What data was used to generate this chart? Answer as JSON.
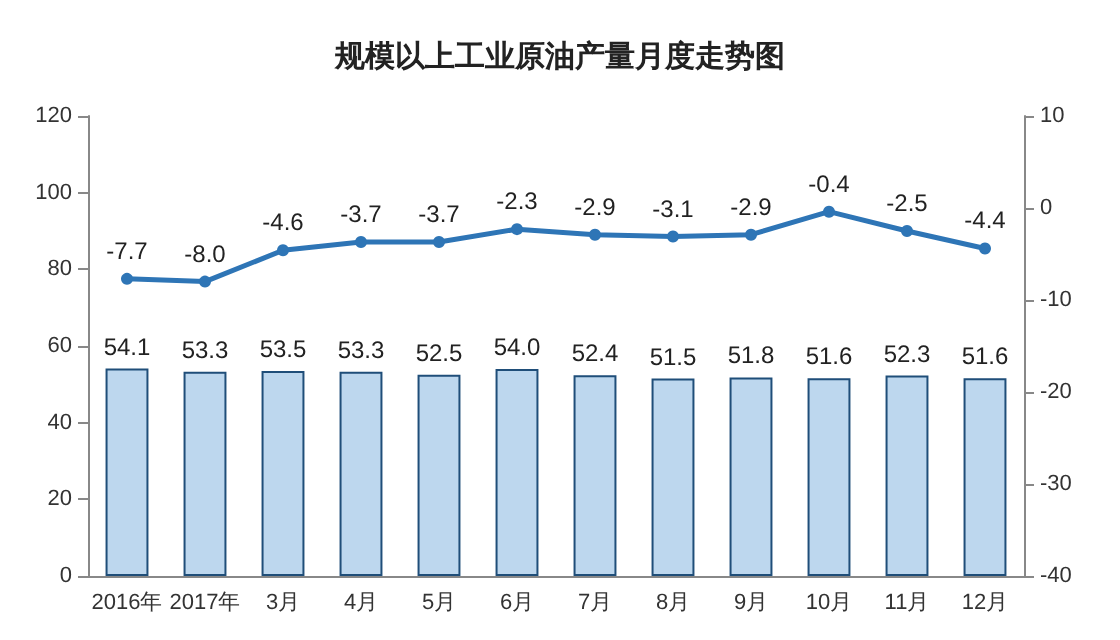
{
  "chart_data": {
    "type": "bar",
    "title": "规模以上工业原油产量月度走势图",
    "categories": [
      "2016年",
      "2017年",
      "3月",
      "4月",
      "5月",
      "6月",
      "7月",
      "8月",
      "9月",
      "10月",
      "11月",
      "12月"
    ],
    "series": [
      {
        "color": "#bdd7ee",
        "values": [
          54.1,
          53.3,
          53.5,
          53.3,
          52.5,
          54.0,
          52.4,
          51.5,
          51.8,
          51.6,
          52.3,
          51.6
        ],
        "value_labels": [
          "54.1",
          "53.3",
          "53.5",
          "53.3",
          "52.5",
          "54.0",
          "52.4",
          "51.5",
          "51.8",
          "51.6",
          "52.3",
          "51.6"
        ]
      },
      {
        "type": "line",
        "axis": "y2",
        "color": "#2e75b6",
        "marker": "circle",
        "values": [
          -7.7,
          -8.0,
          -4.6,
          -3.7,
          -3.7,
          -2.3,
          -2.9,
          -3.1,
          -2.9,
          -0.4,
          -2.5,
          -4.4
        ],
        "value_labels": [
          "-7.7",
          "-8.0",
          "-4.6",
          "-3.7",
          "-3.7",
          "-2.3",
          "-2.9",
          "-3.1",
          "-2.9",
          "-0.4",
          "-2.5",
          "-4.4"
        ]
      }
    ],
    "ylim": [
      0,
      120
    ],
    "yticks": [
      0,
      20,
      40,
      60,
      80,
      100,
      120
    ],
    "y2lim": [
      -40,
      10
    ],
    "y2ticks": [
      -40,
      -30,
      -20,
      -10,
      0,
      10
    ],
    "grid": false
  }
}
